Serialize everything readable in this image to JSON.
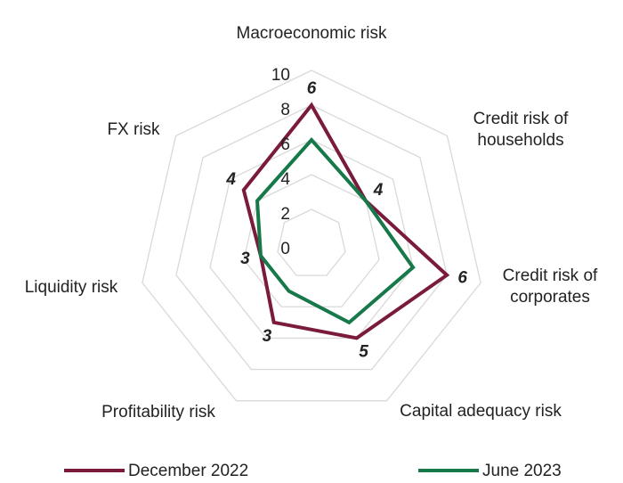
{
  "chart_data": {
    "type": "radar",
    "categories": [
      "Macroeconomic risk",
      "Credit risk of households",
      "Credit risk of corporates",
      "Capital adequacy risk",
      "Profitability risk",
      "Liquidity risk",
      "FX risk"
    ],
    "rlim": [
      0,
      10
    ],
    "rticks": [
      0,
      2,
      4,
      6,
      8,
      10
    ],
    "grid": true,
    "legend": "bottom",
    "series": [
      {
        "name": "December 2022",
        "color": "#7a1a3c",
        "values": [
          8,
          4,
          8,
          6,
          5,
          3,
          5
        ]
      },
      {
        "name": "June 2023",
        "color": "#17794a",
        "values": [
          6,
          4,
          6,
          5,
          3,
          3,
          4
        ],
        "show_labels": true
      }
    ]
  }
}
